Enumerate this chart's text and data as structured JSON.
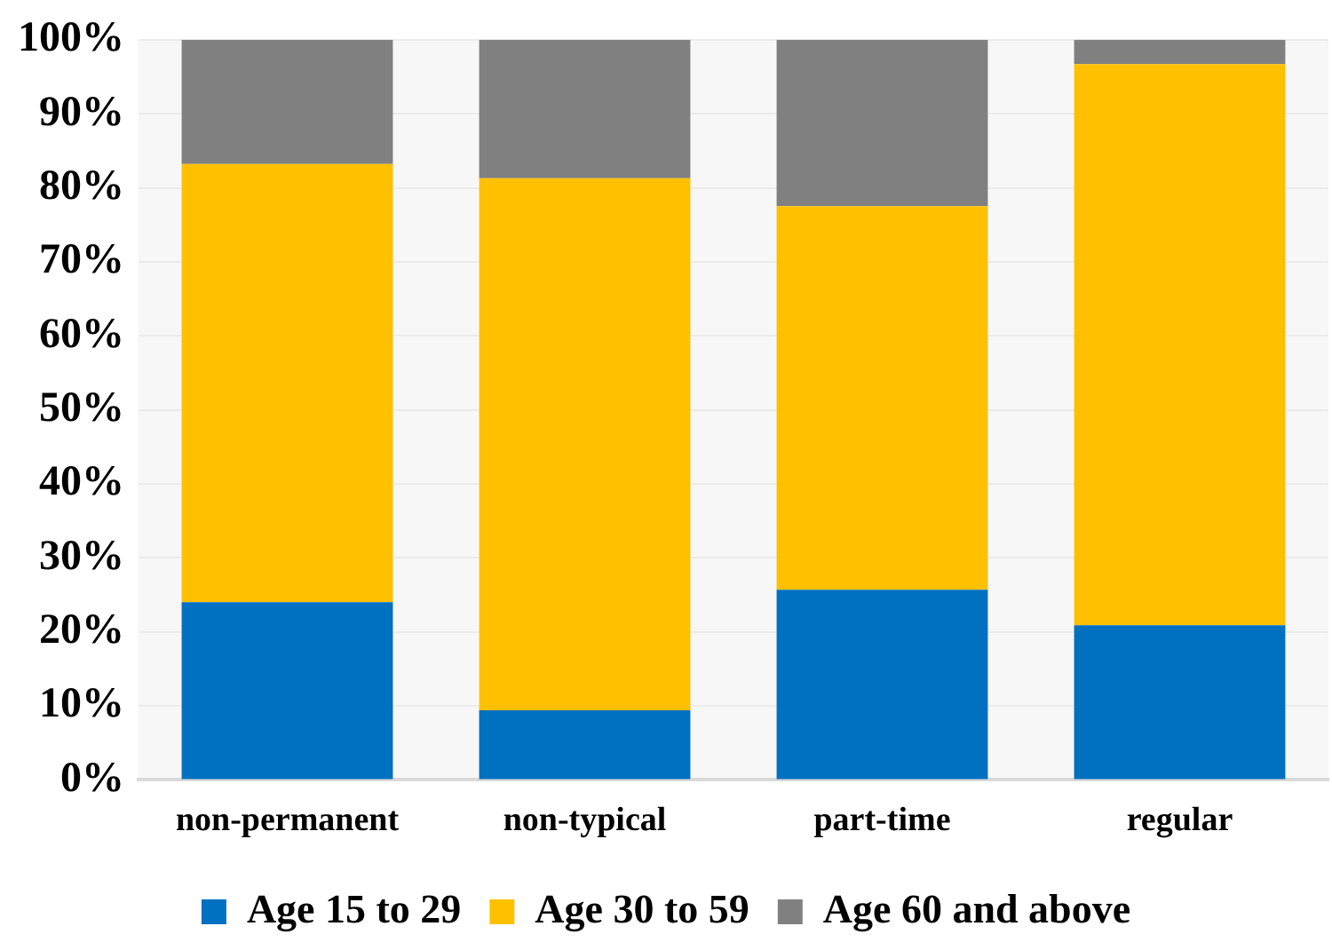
{
  "chart_data": {
    "type": "bar",
    "stacked": true,
    "categories": [
      "non-permanent",
      "non-typical",
      "part-time",
      "regular"
    ],
    "series": [
      {
        "name": "Age 15 to 29",
        "color": "#0070c0",
        "values": [
          24.0,
          9.4,
          25.7,
          20.9
        ]
      },
      {
        "name": "Age 30 to 59",
        "color": "#ffc000",
        "values": [
          59.2,
          71.9,
          51.8,
          75.8
        ]
      },
      {
        "name": "Age 60 and above",
        "color": "#808080",
        "values": [
          16.8,
          18.7,
          22.5,
          3.3
        ]
      }
    ],
    "ylim": [
      0,
      100
    ],
    "yticks": [
      {
        "value": 0,
        "label": "0%"
      },
      {
        "value": 10,
        "label": "10%"
      },
      {
        "value": 20,
        "label": "20%"
      },
      {
        "value": 30,
        "label": "30%"
      },
      {
        "value": 40,
        "label": "40%"
      },
      {
        "value": 50,
        "label": "50%"
      },
      {
        "value": 60,
        "label": "60%"
      },
      {
        "value": 70,
        "label": "70%"
      },
      {
        "value": 80,
        "label": "80%"
      },
      {
        "value": 90,
        "label": "90%"
      },
      {
        "value": 100,
        "label": "100%"
      }
    ],
    "grid": "y",
    "legend": "bottom"
  }
}
